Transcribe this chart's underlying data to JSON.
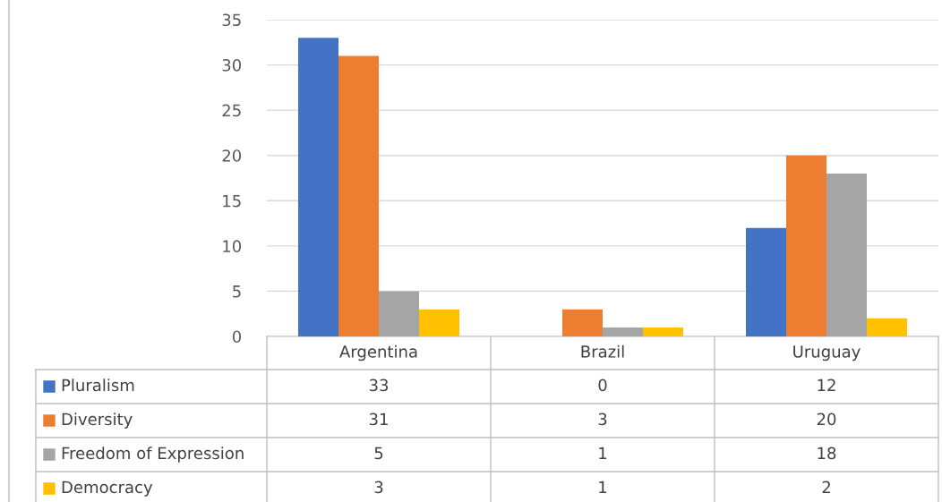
{
  "chart_data": {
    "type": "bar",
    "categories": [
      "Argentina",
      "Brazil",
      "Uruguay"
    ],
    "series": [
      {
        "name": "Pluralism",
        "color": "#4472c4",
        "values": [
          33,
          0,
          12
        ]
      },
      {
        "name": "Diversity",
        "color": "#ed7d31",
        "values": [
          31,
          3,
          20
        ]
      },
      {
        "name": "Freedom of Expression",
        "color": "#a5a5a5",
        "values": [
          5,
          1,
          18
        ]
      },
      {
        "name": "Democracy",
        "color": "#ffc000",
        "values": [
          3,
          1,
          2
        ]
      }
    ],
    "ylim": [
      0,
      35
    ],
    "yticks": [
      0,
      5,
      10,
      15,
      20,
      25,
      30,
      35
    ],
    "grid": "y",
    "legend": "bottom",
    "data_labels": true
  }
}
